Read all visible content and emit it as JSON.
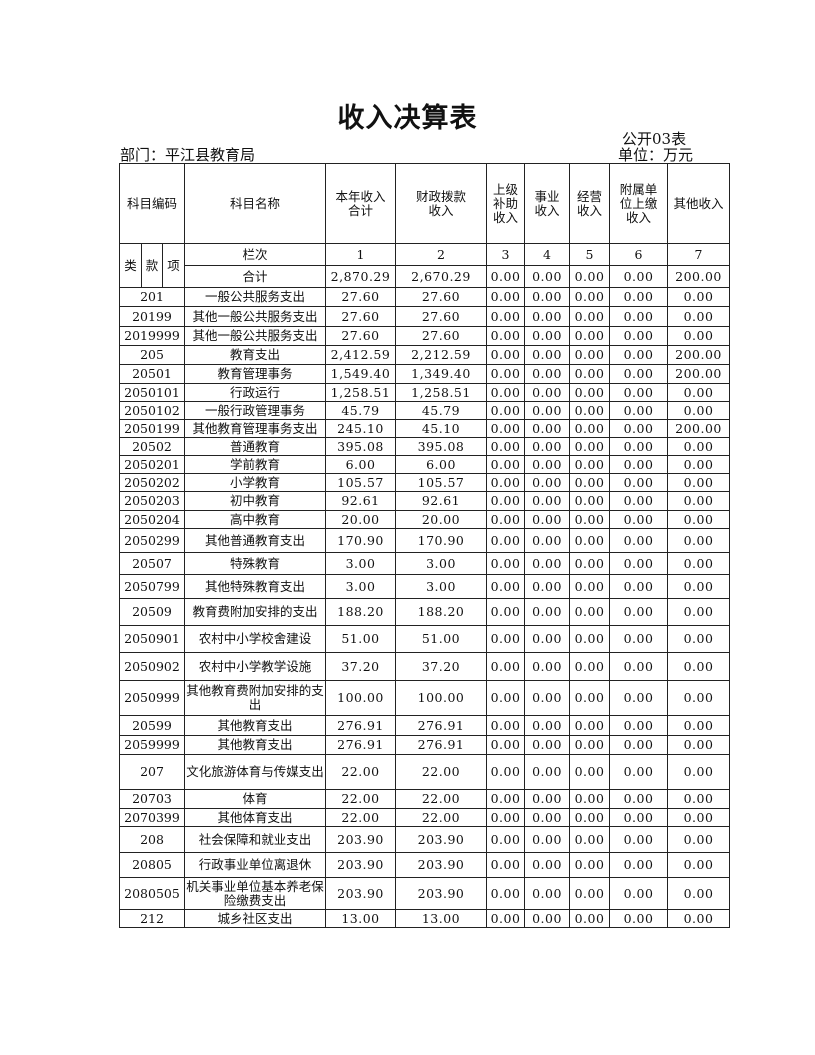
{
  "title": "收入决算表",
  "form_no": "公开03表",
  "department": "部门：平江县教育局",
  "unit": "单位：万元",
  "header": {
    "code": "科目编码",
    "name": "科目名称",
    "cols": [
      "本年收入合计",
      "财政拨款收入",
      "上级补助收入",
      "事业收入",
      "经营收入",
      "附属单位上缴收入",
      "其他收入"
    ],
    "lei": "类",
    "kuan": "款",
    "xiang": "项",
    "lanci": "栏次",
    "col_nums": [
      "1",
      "2",
      "3",
      "4",
      "5",
      "6",
      "7"
    ]
  },
  "total": {
    "label": "合计",
    "values": [
      "2,870.29",
      "2,670.29",
      "0.00",
      "0.00",
      "0.00",
      "0.00",
      "200.00"
    ]
  },
  "rows": [
    {
      "code": "201",
      "name": "一般公共服务支出",
      "values": [
        "27.60",
        "27.60",
        "0.00",
        "0.00",
        "0.00",
        "0.00",
        "0.00"
      ]
    },
    {
      "code": "20199",
      "name": "其他一般公共服务支出",
      "values": [
        "27.60",
        "27.60",
        "0.00",
        "0.00",
        "0.00",
        "0.00",
        "0.00"
      ]
    },
    {
      "code": "2019999",
      "name": "其他一般公共服务支出",
      "values": [
        "27.60",
        "27.60",
        "0.00",
        "0.00",
        "0.00",
        "0.00",
        "0.00"
      ]
    },
    {
      "code": "205",
      "name": "教育支出",
      "values": [
        "2,412.59",
        "2,212.59",
        "0.00",
        "0.00",
        "0.00",
        "0.00",
        "200.00"
      ]
    },
    {
      "code": "20501",
      "name": "教育管理事务",
      "values": [
        "1,549.40",
        "1,349.40",
        "0.00",
        "0.00",
        "0.00",
        "0.00",
        "200.00"
      ]
    },
    {
      "code": "2050101",
      "name": "行政运行",
      "values": [
        "1,258.51",
        "1,258.51",
        "0.00",
        "0.00",
        "0.00",
        "0.00",
        "0.00"
      ]
    },
    {
      "code": "2050102",
      "name": "一般行政管理事务",
      "values": [
        "45.79",
        "45.79",
        "0.00",
        "0.00",
        "0.00",
        "0.00",
        "0.00"
      ]
    },
    {
      "code": "2050199",
      "name": "其他教育管理事务支出",
      "values": [
        "245.10",
        "45.10",
        "0.00",
        "0.00",
        "0.00",
        "0.00",
        "200.00"
      ]
    },
    {
      "code": "20502",
      "name": "普通教育",
      "values": [
        "395.08",
        "395.08",
        "0.00",
        "0.00",
        "0.00",
        "0.00",
        "0.00"
      ]
    },
    {
      "code": "2050201",
      "name": "学前教育",
      "values": [
        "6.00",
        "6.00",
        "0.00",
        "0.00",
        "0.00",
        "0.00",
        "0.00"
      ]
    },
    {
      "code": "2050202",
      "name": "小学教育",
      "values": [
        "105.57",
        "105.57",
        "0.00",
        "0.00",
        "0.00",
        "0.00",
        "0.00"
      ]
    },
    {
      "code": "2050203",
      "name": "初中教育",
      "values": [
        "92.61",
        "92.61",
        "0.00",
        "0.00",
        "0.00",
        "0.00",
        "0.00"
      ]
    },
    {
      "code": "2050204",
      "name": "高中教育",
      "values": [
        "20.00",
        "20.00",
        "0.00",
        "0.00",
        "0.00",
        "0.00",
        "0.00"
      ]
    },
    {
      "code": "2050299",
      "name": "其他普通教育支出",
      "values": [
        "170.90",
        "170.90",
        "0.00",
        "0.00",
        "0.00",
        "0.00",
        "0.00"
      ]
    },
    {
      "code": "20507",
      "name": "特殊教育",
      "values": [
        "3.00",
        "3.00",
        "0.00",
        "0.00",
        "0.00",
        "0.00",
        "0.00"
      ]
    },
    {
      "code": "2050799",
      "name": "其他特殊教育支出",
      "values": [
        "3.00",
        "3.00",
        "0.00",
        "0.00",
        "0.00",
        "0.00",
        "0.00"
      ]
    },
    {
      "code": "20509",
      "name": "教育费附加安排的支出",
      "values": [
        "188.20",
        "188.20",
        "0.00",
        "0.00",
        "0.00",
        "0.00",
        "0.00"
      ]
    },
    {
      "code": "2050901",
      "name": "农村中小学校舍建设",
      "values": [
        "51.00",
        "51.00",
        "0.00",
        "0.00",
        "0.00",
        "0.00",
        "0.00"
      ]
    },
    {
      "code": "2050902",
      "name": "农村中小学教学设施",
      "values": [
        "37.20",
        "37.20",
        "0.00",
        "0.00",
        "0.00",
        "0.00",
        "0.00"
      ]
    },
    {
      "code": "2050999",
      "name": "其他教育费附加安排的支出",
      "values": [
        "100.00",
        "100.00",
        "0.00",
        "0.00",
        "0.00",
        "0.00",
        "0.00"
      ]
    },
    {
      "code": "20599",
      "name": "其他教育支出",
      "values": [
        "276.91",
        "276.91",
        "0.00",
        "0.00",
        "0.00",
        "0.00",
        "0.00"
      ]
    },
    {
      "code": "2059999",
      "name": "其他教育支出",
      "values": [
        "276.91",
        "276.91",
        "0.00",
        "0.00",
        "0.00",
        "0.00",
        "0.00"
      ]
    },
    {
      "code": "207",
      "name": "文化旅游体育与传媒支出",
      "values": [
        "22.00",
        "22.00",
        "0.00",
        "0.00",
        "0.00",
        "0.00",
        "0.00"
      ]
    },
    {
      "code": "20703",
      "name": "体育",
      "values": [
        "22.00",
        "22.00",
        "0.00",
        "0.00",
        "0.00",
        "0.00",
        "0.00"
      ]
    },
    {
      "code": "2070399",
      "name": "其他体育支出",
      "values": [
        "22.00",
        "22.00",
        "0.00",
        "0.00",
        "0.00",
        "0.00",
        "0.00"
      ]
    },
    {
      "code": "208",
      "name": "社会保障和就业支出",
      "values": [
        "203.90",
        "203.90",
        "0.00",
        "0.00",
        "0.00",
        "0.00",
        "0.00"
      ]
    },
    {
      "code": "20805",
      "name": "行政事业单位离退休",
      "values": [
        "203.90",
        "203.90",
        "0.00",
        "0.00",
        "0.00",
        "0.00",
        "0.00"
      ]
    },
    {
      "code": "2080505",
      "name": "机关事业单位基本养老保险缴费支出",
      "values": [
        "203.90",
        "203.90",
        "0.00",
        "0.00",
        "0.00",
        "0.00",
        "0.00"
      ]
    },
    {
      "code": "212",
      "name": "城乡社区支出",
      "values": [
        "13.00",
        "13.00",
        "0.00",
        "0.00",
        "0.00",
        "0.00",
        "0.00"
      ]
    }
  ]
}
